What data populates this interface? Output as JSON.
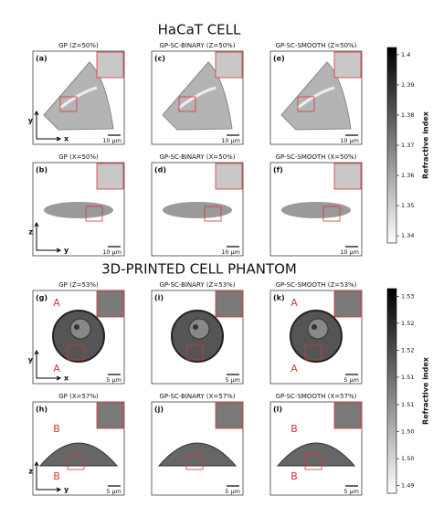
{
  "sections": [
    {
      "title": "HaCaT CELL",
      "colorbar": {
        "label": "Refractive index",
        "ticks": [
          1.4,
          1.39,
          1.38,
          1.37,
          1.36,
          1.35,
          1.34
        ]
      },
      "rows": [
        [
          {
            "label": "(a)",
            "title": "GP (Z=50%)",
            "scale": "10 μm",
            "axes": [
              "y",
              "x"
            ]
          },
          {
            "label": "(c)",
            "title": "GP-SC-BINARY (Z=50%)",
            "scale": "10 μm"
          },
          {
            "label": "(e)",
            "title": "GP-SC-SMOOTH (Z=50%)",
            "scale": "10 μm"
          }
        ],
        [
          {
            "label": "(b)",
            "title": "GP (X=50%)",
            "scale": "10 μm",
            "axes": [
              "z",
              "y"
            ]
          },
          {
            "label": "(d)",
            "title": "GP-SC-BINARY (X=50%)",
            "scale": "10 μm"
          },
          {
            "label": "(f)",
            "title": "GP-SC-SMOOTH (X=50%)",
            "scale": "10 μm"
          }
        ]
      ]
    },
    {
      "title": "3D-PRINTED CELL PHANTOM",
      "colorbar": {
        "label": "Refractive index",
        "ticks": [
          1.53,
          {
            "value": 1.5243,
            "label": "1.52"
          },
          {
            "value": 1.5186,
            "label": "1.52"
          },
          {
            "value": 1.5129,
            "label": "1.51"
          },
          {
            "value": 1.5071,
            "label": "1.51"
          },
          {
            "value": 1.5014,
            "label": "1.50"
          },
          {
            "value": 1.4957,
            "label": "1.50"
          },
          1.49
        ]
      },
      "rows": [
        [
          {
            "label": "(g)",
            "title": "GP (Z=53%)",
            "scale": "5 μm",
            "axes": [
              "y",
              "x"
            ],
            "marks": [
              "A",
              "A"
            ]
          },
          {
            "label": "(i)",
            "title": "GP-SC-BINARY (Z=53%)",
            "scale": "5 μm"
          },
          {
            "label": "(k)",
            "title": "GP-SC-SMOOTH (Z=53%)",
            "scale": "5 μm",
            "marks": [
              "A",
              "A"
            ]
          }
        ],
        [
          {
            "label": "(h)",
            "title": "GP (X=57%)",
            "scale": "5 μm",
            "axes": [
              "z",
              "y"
            ],
            "marks": [
              "B",
              "B"
            ]
          },
          {
            "label": "(j)",
            "title": "GP-SC-BINARY (X=57%)",
            "scale": "5 μm"
          },
          {
            "label": "(l)",
            "title": "GP-SC-SMOOTH (X=57%)",
            "scale": "5 μm",
            "marks": [
              "B",
              "B"
            ]
          }
        ]
      ]
    }
  ]
}
